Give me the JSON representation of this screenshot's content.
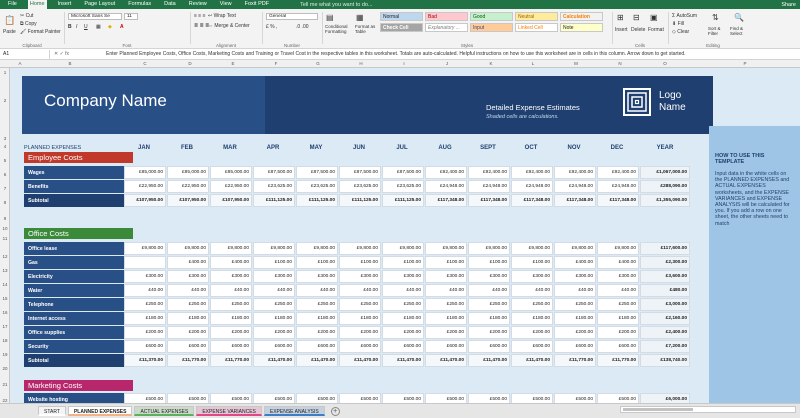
{
  "ribbon_tabs": [
    "File",
    "Home",
    "Insert",
    "Page Layout",
    "Formulas",
    "Data",
    "Review",
    "View",
    "Foxit PDF"
  ],
  "tell_me": "Tell me what you want to do...",
  "share": "Share",
  "ribbon": {
    "clipboard": {
      "paste": "Paste",
      "cut": "Cut",
      "copy": "Copy",
      "format_painter": "Format Painter",
      "label": "Clipboard"
    },
    "font": {
      "name": "Microsoft Sans Se",
      "size": "11",
      "label": "Font"
    },
    "alignment": {
      "wrap": "Wrap Text",
      "merge": "Merge & Center",
      "label": "Alignment"
    },
    "number": {
      "format": "General",
      "label": "Number"
    },
    "styles": {
      "conditional": "Conditional Formatting",
      "format_table": "Format as Table",
      "normal": "Normal",
      "bad": "Bad",
      "good": "Good",
      "neutral": "Neutral",
      "calculation": "Calculation",
      "check_cell": "Check Cell",
      "explanatory": "Explanatory ...",
      "input": "Input",
      "linked_cell": "Linked Cell",
      "note": "Note",
      "label": "Styles"
    },
    "cells": {
      "insert": "Insert",
      "delete": "Delete",
      "format": "Format",
      "label": "Cells"
    },
    "editing": {
      "autosum": "AutoSum",
      "fill": "Fill",
      "clear": "Clear",
      "sort": "Sort & Filter",
      "find": "Find & Select",
      "label": "Editing"
    }
  },
  "formula": {
    "cell_ref": "A1",
    "text": "Enter Planned Employee Costs, Office Costs, Marketing Costs and Training or Travel Cost in the respective tables in this worksheet. Totals are auto-calculated. Helpful instructions on how to use this worksheet are in cells in this column. Arrow down to get started."
  },
  "columns": [
    "A",
    "B",
    "C",
    "D",
    "E",
    "F",
    "G",
    "H",
    "I",
    "J",
    "K",
    "L",
    "M",
    "N",
    "O",
    "P"
  ],
  "rows": [
    "1",
    "2",
    "3",
    "4",
    "5",
    "6",
    "7",
    "8",
    "9",
    "10",
    "11",
    "12",
    "13",
    "14",
    "15",
    "16",
    "17",
    "18",
    "19",
    "20",
    "21",
    "22"
  ],
  "banner": {
    "company": "Company Name",
    "title": "Detailed Expense Estimates",
    "subtitle": "Shaded cells are calculations.",
    "logo": "Logo Name"
  },
  "howto": {
    "heading": "HOW TO USE THIS TEMPLATE",
    "body": "Input data in the white cells on the PLANNED EXPENSES and ACTUAL EXPENSES worksheets, and the EXPENSE VARIANCES and EXPENSE ANALYSIS will be calculated for you. If you add a row on one sheet, the other sheets need to match"
  },
  "planned_label": "PLANNED EXPENSES",
  "months": [
    "JAN",
    "FEB",
    "MAR",
    "APR",
    "MAY",
    "JUN",
    "JUL",
    "AUG",
    "SEPT",
    "OCT",
    "NOV",
    "DEC",
    "YEAR"
  ],
  "employee": {
    "title": "Employee Costs",
    "color": "#c0392b",
    "rows": [
      {
        "label": "Wages",
        "values": [
          "£85,000.00",
          "£85,000.00",
          "£85,000.00",
          "£87,500.00",
          "£87,500.00",
          "£87,500.00",
          "£87,500.00",
          "£92,400.00",
          "£92,400.00",
          "£92,400.00",
          "£92,400.00",
          "£92,400.00",
          "£1,067,000.00"
        ]
      },
      {
        "label": "Benefits",
        "values": [
          "£22,950.00",
          "£22,950.00",
          "£22,950.00",
          "£23,625.00",
          "£23,625.00",
          "£23,625.00",
          "£23,625.00",
          "£24,948.00",
          "£24,948.00",
          "£24,948.00",
          "£24,948.00",
          "£24,948.00",
          "£288,090.00"
        ]
      },
      {
        "label": "Subtotal",
        "values": [
          "£107,950.00",
          "£107,950.00",
          "£107,950.00",
          "£111,125.00",
          "£111,125.00",
          "£111,125.00",
          "£111,125.00",
          "£117,348.00",
          "£117,348.00",
          "£117,348.00",
          "£117,348.00",
          "£117,348.00",
          "£1,355,090.00"
        ],
        "subtotal": true
      }
    ]
  },
  "office": {
    "title": "Office Costs",
    "color": "#3a8a3a",
    "rows": [
      {
        "label": "Office lease",
        "values": [
          "£9,800.00",
          "£9,800.00",
          "£9,800.00",
          "£9,800.00",
          "£9,800.00",
          "£9,800.00",
          "£9,800.00",
          "£9,800.00",
          "£9,800.00",
          "£9,800.00",
          "£9,800.00",
          "£9,800.00",
          "£117,600.00"
        ]
      },
      {
        "label": "Gas",
        "values": [
          "",
          "£400.00",
          "£400.00",
          "£100.00",
          "£100.00",
          "£100.00",
          "£100.00",
          "£100.00",
          "£100.00",
          "£100.00",
          "£400.00",
          "£400.00",
          "£2,300.00"
        ]
      },
      {
        "label": "Electricity",
        "values": [
          "£300.00",
          "£300.00",
          "£300.00",
          "£300.00",
          "£300.00",
          "£300.00",
          "£300.00",
          "£300.00",
          "£300.00",
          "£300.00",
          "£300.00",
          "£300.00",
          "£3,600.00"
        ]
      },
      {
        "label": "Water",
        "values": [
          "£40.00",
          "£40.00",
          "£40.00",
          "£40.00",
          "£40.00",
          "£40.00",
          "£40.00",
          "£40.00",
          "£40.00",
          "£40.00",
          "£40.00",
          "£40.00",
          "£480.00"
        ]
      },
      {
        "label": "Telephone",
        "values": [
          "£250.00",
          "£250.00",
          "£250.00",
          "£250.00",
          "£250.00",
          "£250.00",
          "£250.00",
          "£250.00",
          "£250.00",
          "£250.00",
          "£250.00",
          "£250.00",
          "£3,000.00"
        ]
      },
      {
        "label": "Internet access",
        "values": [
          "£180.00",
          "£180.00",
          "£180.00",
          "£180.00",
          "£180.00",
          "£180.00",
          "£180.00",
          "£180.00",
          "£180.00",
          "£180.00",
          "£180.00",
          "£180.00",
          "£2,160.00"
        ]
      },
      {
        "label": "Office supplies",
        "values": [
          "£200.00",
          "£200.00",
          "£200.00",
          "£200.00",
          "£200.00",
          "£200.00",
          "£200.00",
          "£200.00",
          "£200.00",
          "£200.00",
          "£200.00",
          "£200.00",
          "£2,400.00"
        ]
      },
      {
        "label": "Security",
        "values": [
          "£600.00",
          "£600.00",
          "£600.00",
          "£600.00",
          "£600.00",
          "£600.00",
          "£600.00",
          "£600.00",
          "£600.00",
          "£600.00",
          "£600.00",
          "£600.00",
          "£7,200.00"
        ]
      },
      {
        "label": "Subtotal",
        "values": [
          "£11,370.00",
          "£11,770.00",
          "£11,770.00",
          "£11,470.00",
          "£11,470.00",
          "£11,470.00",
          "£11,470.00",
          "£11,470.00",
          "£11,470.00",
          "£11,470.00",
          "£11,770.00",
          "£11,770.00",
          "£138,740.00"
        ],
        "subtotal": true
      }
    ]
  },
  "marketing": {
    "title": "Marketing Costs",
    "color": "#b8266b",
    "rows": [
      {
        "label": "Website hosting",
        "values": [
          "£500.00",
          "£500.00",
          "£500.00",
          "£500.00",
          "£500.00",
          "£500.00",
          "£500.00",
          "£500.00",
          "£500.00",
          "£500.00",
          "£500.00",
          "£500.00",
          "£6,000.00"
        ]
      }
    ]
  },
  "sheet_tabs": [
    {
      "label": "START",
      "color": "#ffffff"
    },
    {
      "label": "PLANNED EXPENSES",
      "color": "#f4b183",
      "active": true
    },
    {
      "label": "ACTUAL EXPENSES",
      "color": "#5bb05b"
    },
    {
      "label": "EXPENSE VARIANCES",
      "color": "#e0488a"
    },
    {
      "label": "EXPENSE ANALYSIS",
      "color": "#3c7fc6"
    }
  ]
}
